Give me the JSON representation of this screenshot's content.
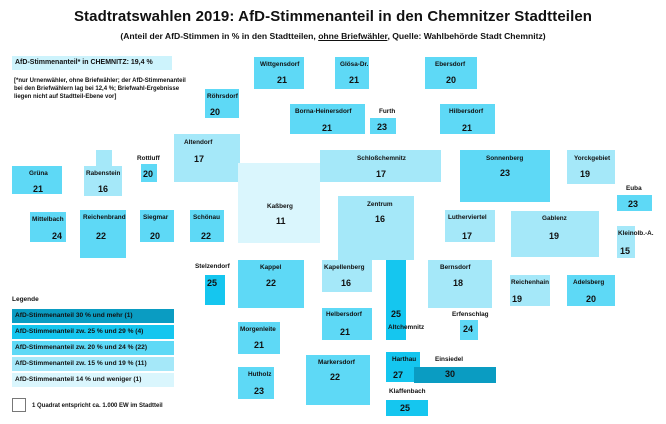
{
  "title": "Stadtratswahlen 2019: AfD-Stimmenanteil in den Chemnitzer Stadtteilen",
  "subtitle_before": "(Anteil der AfD-Stimmen in % in den Stadtteilen, ",
  "subtitle_underlined": "ohne Briefwähler",
  "subtitle_after": ", Quelle: Wahlbehörde Stadt Chemnitz)",
  "city_share_label": "AfD-Stimmenanteil* in CHEMNITZ: 19,4 %",
  "footnote": "[*nur Urnenwähler, ohne Briefwähler; der AfD-Stimmenanteil bei den Briefwählern lag bei 12,4 %; Briefwahl-Ergebnisse liegen nicht auf Stadtteil-Ebene vor]",
  "colors": {
    "30_plus": "#0a9cc2",
    "25_29": "#15c6ef",
    "20_24": "#5ed9f6",
    "15_19": "#a5e8f9",
    "14_minus": "#daf6fd"
  },
  "legend": {
    "title": "Legende",
    "items": [
      {
        "label": "AfD-Stimmenanteil 30 % und mehr  (1)",
        "class": "30_plus"
      },
      {
        "label": "AfD-Stimmenanteil zw. 25 % und 29 % (4)",
        "class": "25_29"
      },
      {
        "label": "AfD-Stimmenanteil zw. 20 % und 24 % (22)",
        "class": "20_24"
      },
      {
        "label": "AfD-Stimmenanteil zw. 15 % und 19 % (11)",
        "class": "15_19"
      },
      {
        "label": "AfD-Stimmenanteil 14 % und weniger (1)",
        "class": "14_minus"
      }
    ]
  },
  "scale_note": "1 Quadrat entspricht ca. 1.000 EW im Stadtteil",
  "districts": [
    {
      "name": "Wittgensdorf",
      "value": "21"
    },
    {
      "name": "Glösa-Dr.",
      "value": "21"
    },
    {
      "name": "Ebersdorf",
      "value": "20"
    },
    {
      "name": "Röhrsdorf",
      "value": "20"
    },
    {
      "name": "Borna-Heinersdorf",
      "value": "21"
    },
    {
      "name": "Furth",
      "value": "23"
    },
    {
      "name": "Hilbersdorf",
      "value": "21"
    },
    {
      "name": "Altendorf",
      "value": "17"
    },
    {
      "name": "Grüna",
      "value": "21"
    },
    {
      "name": "Rabenstein",
      "value": "16"
    },
    {
      "name": "Rottluff",
      "value": "20"
    },
    {
      "name": "Schloßchemnitz",
      "value": "17"
    },
    {
      "name": "Sonnenberg",
      "value": "23"
    },
    {
      "name": "Yorckgebiet",
      "value": "19"
    },
    {
      "name": "Euba",
      "value": "23"
    },
    {
      "name": "Mittelbach",
      "value": "24"
    },
    {
      "name": "Reichenbrand",
      "value": "22"
    },
    {
      "name": "Siegmar",
      "value": "20"
    },
    {
      "name": "Schönau",
      "value": "22"
    },
    {
      "name": "Kaßberg",
      "value": "11"
    },
    {
      "name": "Zentrum",
      "value": "16"
    },
    {
      "name": "Lutherviertel",
      "value": "17"
    },
    {
      "name": "Gablenz",
      "value": "19"
    },
    {
      "name": "Kleinolb.-A.",
      "value": "15"
    },
    {
      "name": "Stelzendorf",
      "value": "25"
    },
    {
      "name": "Kappel",
      "value": "22"
    },
    {
      "name": "Kapellenberg",
      "value": "16"
    },
    {
      "name": "Bernsdorf",
      "value": "18"
    },
    {
      "name": "Reichenhain",
      "value": "19"
    },
    {
      "name": "Adelsberg",
      "value": "20"
    },
    {
      "name": "Helbersdorf",
      "value": "21"
    },
    {
      "name": "Altchemnitz",
      "value": "25"
    },
    {
      "name": "Erfenschlag",
      "value": "24"
    },
    {
      "name": "Morgenleite",
      "value": "21"
    },
    {
      "name": "Markersdorf",
      "value": "22"
    },
    {
      "name": "Harthau",
      "value": "27"
    },
    {
      "name": "Einsiedel",
      "value": "30"
    },
    {
      "name": "Hutholz",
      "value": "23"
    },
    {
      "name": "Klaffenbach",
      "value": "25"
    }
  ]
}
